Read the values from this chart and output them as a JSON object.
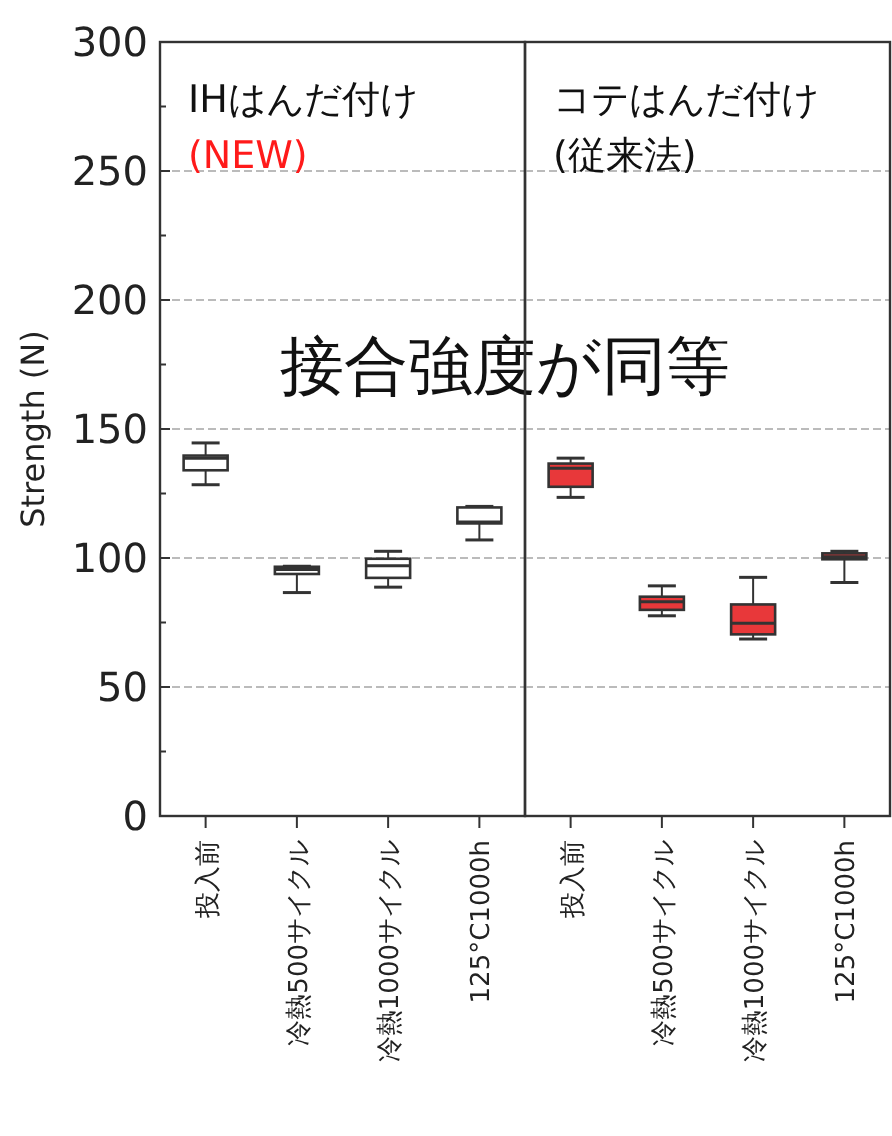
{
  "chart_data": [
    {
      "type": "box",
      "title": "IHはんだ付け",
      "subtitle": "(NEW)",
      "ylabel": "Strength  (N)",
      "annotations": [
        "接合強度が同等"
      ],
      "categories": [
        "投入前",
        "冷熱500サイクル",
        "冷熱1000サイクル",
        "125°C1000h"
      ],
      "series": [
        {
          "color": "#ffffff",
          "boxes": [
            {
              "low": 128.4,
              "q1": 134,
              "median": 138.7,
              "q3": 139.7,
              "high": 144.6
            },
            {
              "low": 86.6,
              "q1": 93.8,
              "median": 95.5,
              "q3": 96.6,
              "high": 96.8
            },
            {
              "low": 88.7,
              "q1": 92.3,
              "median": 97,
              "q3": 99.7,
              "high": 102.6
            },
            {
              "low": 107,
              "q1": 113.4,
              "median": 114,
              "q3": 119.6,
              "high": 120
            }
          ]
        }
      ],
      "ylim": [
        0,
        300
      ],
      "yticks": [
        0,
        {
          "value": 25,
          "label": null
        },
        50,
        {
          "value": 75,
          "label": null
        },
        100,
        {
          "value": 125,
          "label": null
        },
        150,
        {
          "value": 175,
          "label": null
        },
        200,
        {
          "value": 225,
          "label": null
        },
        250,
        {
          "value": 275,
          "label": null
        },
        300
      ],
      "grid": "y"
    },
    {
      "type": "box",
      "title": "コテはんだ付け",
      "subtitle": "(従来法)",
      "categories": [
        "投入前",
        "冷熱500サイクル",
        "冷熱1000サイクル",
        "125°C1000h"
      ],
      "series": [
        {
          "color": "#e8383a",
          "boxes": [
            {
              "low": 123.5,
              "q1": 127.6,
              "median": 134.8,
              "q3": 136.6,
              "high": 138.7
            },
            {
              "low": 77.6,
              "q1": 79.9,
              "median": 83,
              "q3": 85,
              "high": 89.2
            },
            {
              "low": 68.6,
              "q1": 70.4,
              "median": 74.7,
              "q3": 82,
              "high": 92.5
            },
            {
              "low": 90.5,
              "q1": 99.5,
              "median": 100.5,
              "q3": 101.8,
              "high": 102.6
            }
          ]
        }
      ],
      "ylim": [
        0,
        300
      ],
      "yticks": [
        0,
        50,
        100,
        150,
        200,
        250,
        300
      ],
      "grid": "y",
      "tick_labels": "x"
    }
  ]
}
